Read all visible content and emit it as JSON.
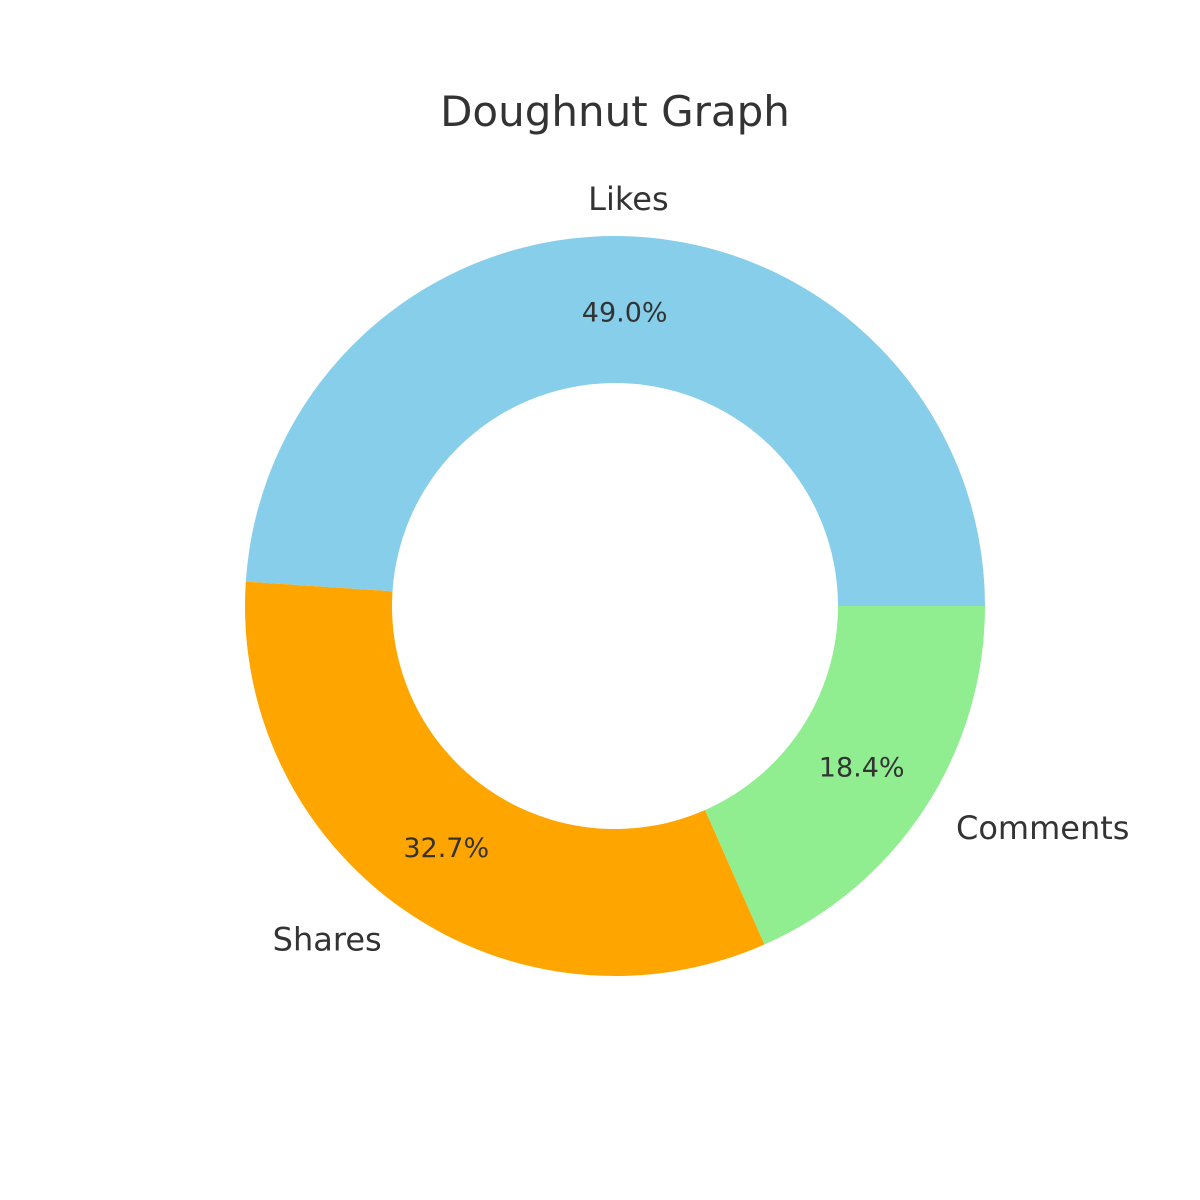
{
  "chart_data": {
    "type": "pie",
    "variant": "doughnut",
    "title": "Doughnut Graph",
    "categories": [
      "Likes",
      "Shares",
      "Comments"
    ],
    "values": [
      49.0,
      32.7,
      18.4
    ],
    "percent_labels": [
      "49.0%",
      "32.7%",
      "18.4%"
    ],
    "colors": [
      "#87CEEB",
      "#FFA500",
      "#90EE90"
    ],
    "start_angle_deg": 0,
    "direction": "counterclockwise",
    "legend": "none"
  }
}
